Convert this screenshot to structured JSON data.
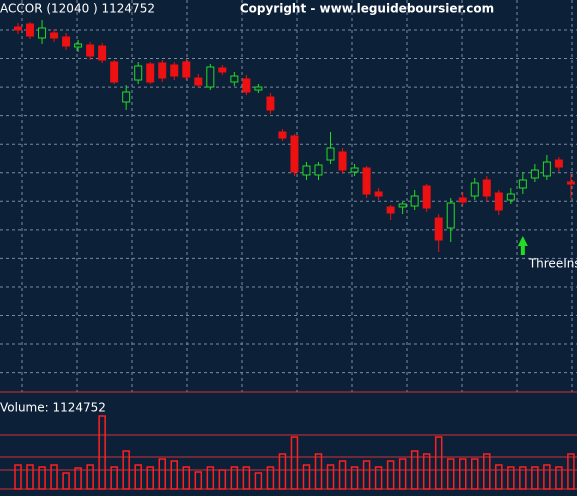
{
  "chart_data": {
    "type": "candlestick",
    "title": "ACCOR (12040 ) 1124752",
    "subtitle": "Copyright - www.leguideboursier.com",
    "open": [
      373,
      376,
      362,
      367,
      363,
      353,
      355,
      354,
      338,
      298,
      320,
      336,
      337,
      335,
      338,
      322,
      313,
      332,
      318,
      321,
      310,
      303,
      268,
      264,
      225,
      225,
      240,
      248,
      228,
      232,
      208,
      193,
      193,
      194,
      214,
      182,
      172,
      202,
      204,
      220,
      207,
      200,
      212,
      222,
      224,
      240,
      218
    ],
    "high": [
      377,
      378,
      380,
      371,
      367,
      360,
      358,
      357,
      340,
      315,
      338,
      338,
      340,
      338,
      341,
      326,
      336,
      335,
      328,
      325,
      316,
      307,
      271,
      266,
      238,
      238,
      268,
      252,
      236,
      234,
      212,
      195,
      198,
      210,
      216,
      186,
      202,
      208,
      222,
      224,
      210,
      212,
      228,
      236,
      245,
      243,
      226
    ],
    "low": [
      366,
      361,
      356,
      358,
      350,
      348,
      340,
      337,
      316,
      290,
      316,
      316,
      318,
      320,
      320,
      312,
      310,
      325,
      314,
      305,
      307,
      286,
      259,
      224,
      220,
      220,
      236,
      226,
      224,
      202,
      200,
      180,
      186,
      190,
      188,
      148,
      158,
      194,
      200,
      198,
      185,
      196,
      206,
      218,
      220,
      228,
      202
    ],
    "close": [
      370,
      364,
      372,
      362,
      354,
      356,
      344,
      340,
      318,
      308,
      334,
      318,
      322,
      324,
      323,
      315,
      333,
      328,
      324,
      308,
      313,
      290,
      262,
      228,
      234,
      235,
      252,
      230,
      232,
      206,
      204,
      187,
      196,
      204,
      192,
      160,
      197,
      198,
      217,
      204,
      190,
      206,
      220,
      230,
      238,
      233,
      216
    ],
    "ylim": [
      8,
      400
    ],
    "up_color": "#22dd22",
    "down_color": "#ee1111",
    "grid": true,
    "volume": {
      "label": "Volume: 1124752",
      "color": "#ff2020",
      "ylim": [
        0,
        89
      ],
      "values": [
        24,
        24,
        22,
        24,
        16,
        21,
        24,
        73,
        22,
        38,
        24,
        22,
        30,
        28,
        22,
        17,
        22,
        19,
        22,
        22,
        16,
        22,
        35,
        52,
        24,
        35,
        24,
        28,
        22,
        28,
        22,
        28,
        30,
        38,
        35,
        52,
        30,
        30,
        30,
        35,
        24,
        22,
        22,
        22,
        24,
        22,
        35
      ]
    },
    "annotation": {
      "text": "ThreeIns",
      "index": 42,
      "color": "#22dd22"
    }
  }
}
